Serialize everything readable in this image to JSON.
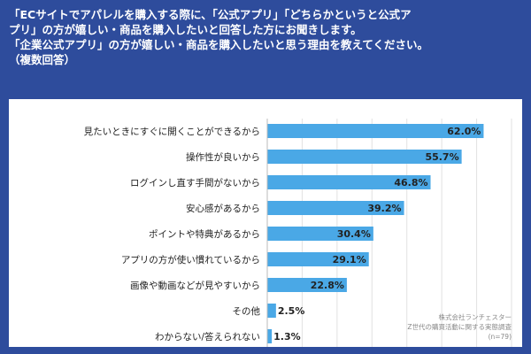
{
  "header": {
    "lines": [
      "「ECサイトでアパレルを購入する際に、「公式アプリ」「どちらかというと公式ア",
      "プリ」の方が嬉しい・商品を購入したいと回答した方にお聞きします。",
      "「企業公式アプリ」の方が嬉しい・商品を購入したいと思う理由を教えてください。",
      "（複数回答）"
    ]
  },
  "source": {
    "company": "株式会社ランチェスター",
    "survey": "Z世代の購買活動に関する実態調査",
    "sample": "(n=79)"
  },
  "colors": {
    "background": "#2e4c9c",
    "bar": "#4aa8e6",
    "grid": "#e2e2e2"
  },
  "chart_data": {
    "type": "bar",
    "orientation": "horizontal",
    "title": "「企業公式アプリ」の方が嬉しい・商品を購入したいと思う理由（複数回答）",
    "unit": "%",
    "xlim": [
      0,
      70
    ],
    "grid": true,
    "categories": [
      "見たいときにすぐに開くことができるから",
      "操作性が良いから",
      "ログインし直す手間がないから",
      "安心感があるから",
      "ポイントや特典があるから",
      "アプリの方が使い慣れているから",
      "画像や動画などが見やすいから",
      "その他",
      "わからない/答えられない"
    ],
    "values": [
      62.0,
      55.7,
      46.8,
      39.2,
      30.4,
      29.1,
      22.8,
      2.5,
      1.3
    ],
    "labels": [
      "62.0%",
      "55.7%",
      "46.8%",
      "39.2%",
      "30.4%",
      "29.1%",
      "22.8%",
      "2.5%",
      "1.3%"
    ]
  }
}
